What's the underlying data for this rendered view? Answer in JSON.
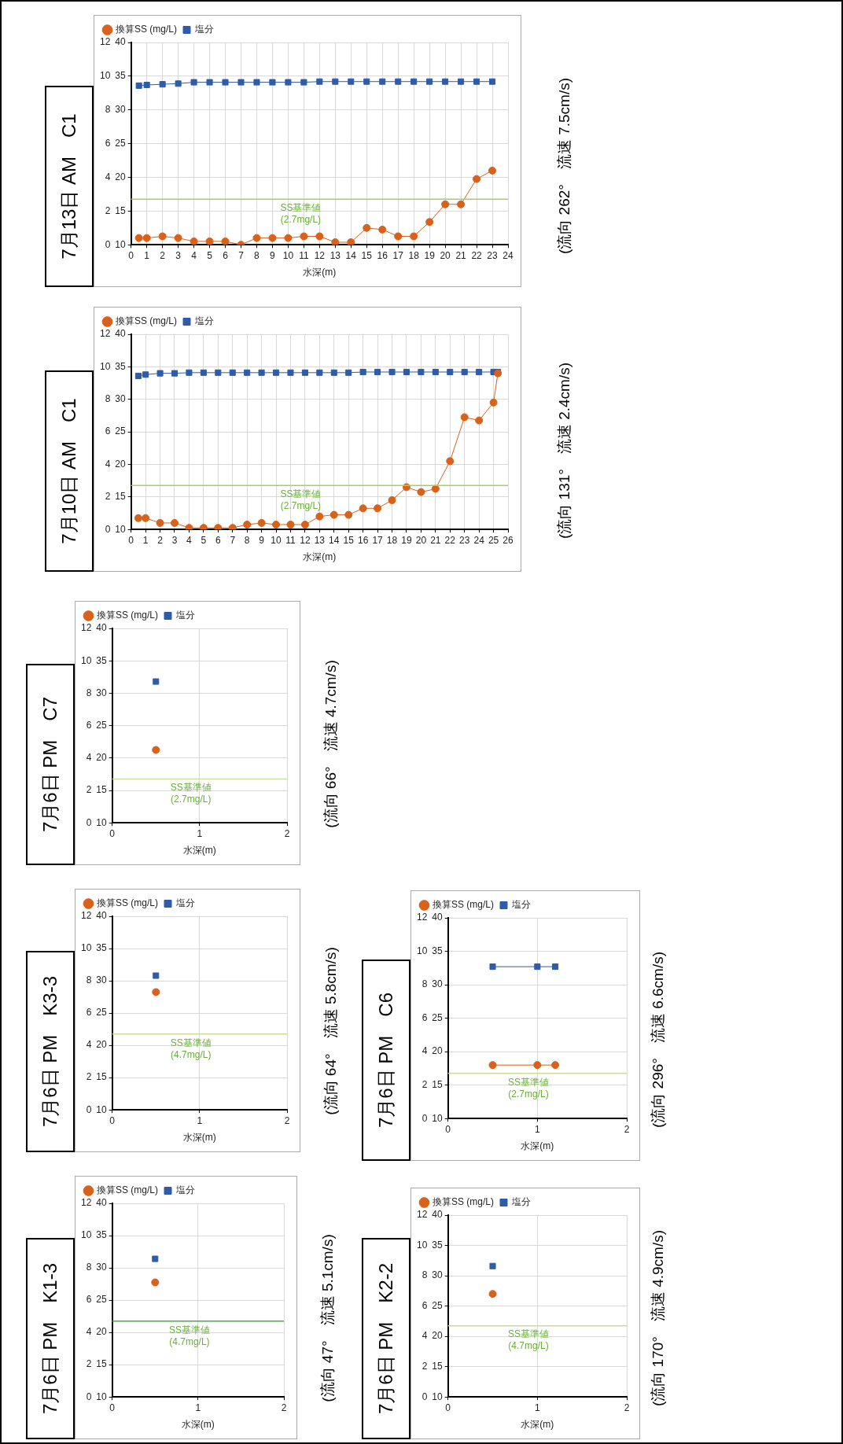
{
  "chart_data": [
    {
      "type": "line",
      "title": "7月13日 AM　C1",
      "xlabel": "水深(m)",
      "xlim": [
        0,
        24
      ],
      "xticks": [
        0,
        1,
        2,
        3,
        4,
        5,
        6,
        7,
        8,
        9,
        10,
        11,
        12,
        13,
        14,
        15,
        16,
        17,
        18,
        19,
        20,
        21,
        22,
        23,
        24
      ],
      "ylim": [
        0,
        12
      ],
      "yticks": [
        0,
        2,
        4,
        6,
        8,
        10,
        12
      ],
      "y2lim": [
        10,
        40
      ],
      "y2ticks": [
        10,
        15,
        20,
        25,
        30,
        35,
        40
      ],
      "grid": true,
      "legend": "top left",
      "series": [
        {
          "name": "換算SS (mg/L)",
          "color": "#d8611b",
          "marker": "circle",
          "x": [
            0.5,
            1,
            2,
            3,
            4,
            5,
            6,
            7,
            8,
            9,
            10,
            11,
            12,
            13,
            14,
            15,
            16,
            17,
            18,
            19,
            20,
            21,
            22,
            23
          ],
          "values": [
            0.4,
            0.4,
            0.5,
            0.4,
            0.2,
            0.2,
            0.2,
            0,
            0.4,
            0.4,
            0.4,
            0.5,
            0.5,
            0.15,
            0.15,
            1.0,
            0.9,
            0.5,
            0.5,
            1.35,
            2.4,
            2.4,
            3.9,
            4.4
          ]
        },
        {
          "name": "塩分",
          "color": "#2e5ca8",
          "marker": "square",
          "axis": "y2",
          "x": [
            0.5,
            1,
            2,
            3,
            4,
            5,
            6,
            7,
            8,
            9,
            10,
            11,
            12,
            13,
            14,
            15,
            16,
            17,
            18,
            19,
            20,
            21,
            22,
            23
          ],
          "values": [
            33.6,
            33.7,
            33.8,
            33.9,
            34.1,
            34.1,
            34.1,
            34.1,
            34.1,
            34.1,
            34.1,
            34.1,
            34.2,
            34.2,
            34.2,
            34.2,
            34.2,
            34.2,
            34.2,
            34.2,
            34.2,
            34.2,
            34.2,
            34.2
          ]
        }
      ],
      "ref_lines": [
        {
          "axis": "y",
          "value": 2.7,
          "label": "SS基準値\n(2.7mg/L)",
          "color": "#a9cf5a"
        }
      ],
      "annotations": [
        "(流向 262°　流速 7.5cm/s)"
      ]
    },
    {
      "type": "line",
      "title": "7月10日 AM　C1",
      "xlabel": "水深(m)",
      "xlim": [
        0,
        26
      ],
      "xticks": [
        0,
        1,
        2,
        3,
        4,
        5,
        6,
        7,
        8,
        9,
        10,
        11,
        12,
        13,
        14,
        15,
        16,
        17,
        18,
        19,
        20,
        21,
        22,
        23,
        24,
        25,
        26
      ],
      "ylim": [
        0,
        12
      ],
      "yticks": [
        0,
        2,
        4,
        6,
        8,
        10,
        12
      ],
      "y2lim": [
        10,
        40
      ],
      "y2ticks": [
        10,
        15,
        20,
        25,
        30,
        35,
        40
      ],
      "grid": true,
      "legend": "top left",
      "series": [
        {
          "name": "換算SS (mg/L)",
          "color": "#d8611b",
          "marker": "circle",
          "x": [
            0.5,
            1,
            2,
            3,
            4,
            5,
            6,
            7,
            8,
            9,
            10,
            11,
            12,
            13,
            14,
            15,
            16,
            17,
            18,
            19,
            20,
            21,
            22,
            23,
            24,
            25,
            25.3
          ],
          "values": [
            0.7,
            0.7,
            0.4,
            0.4,
            0.1,
            0.1,
            0.1,
            0.1,
            0.3,
            0.4,
            0.3,
            0.3,
            0.3,
            0.8,
            0.9,
            0.9,
            1.3,
            1.3,
            1.8,
            2.6,
            2.3,
            2.5,
            4.2,
            6.9,
            6.7,
            7.8,
            9.6
          ]
        },
        {
          "name": "塩分",
          "color": "#2e5ca8",
          "marker": "square",
          "axis": "y2",
          "x": [
            0.5,
            1,
            2,
            3,
            4,
            5,
            6,
            7,
            8,
            9,
            10,
            11,
            12,
            13,
            14,
            15,
            16,
            17,
            18,
            19,
            20,
            21,
            22,
            23,
            24,
            25,
            25.3
          ],
          "values": [
            33.6,
            33.8,
            34.0,
            34.0,
            34.1,
            34.1,
            34.1,
            34.1,
            34.1,
            34.1,
            34.1,
            34.1,
            34.1,
            34.1,
            34.1,
            34.1,
            34.2,
            34.2,
            34.2,
            34.2,
            34.2,
            34.2,
            34.2,
            34.2,
            34.2,
            34.2,
            34.2
          ]
        }
      ],
      "ref_lines": [
        {
          "axis": "y",
          "value": 2.7,
          "label": "SS基準値\n(2.7mg/L)",
          "color": "#a9cf5a"
        }
      ],
      "annotations": [
        "(流向 131°　流速 2.4cm/s)"
      ]
    },
    {
      "type": "scatter",
      "title": "7月6日 PM　C7",
      "xlabel": "水深(m)",
      "xlim": [
        0,
        2
      ],
      "xticks": [
        0,
        1,
        2
      ],
      "ylim": [
        0,
        12
      ],
      "yticks": [
        0,
        2,
        4,
        6,
        8,
        10,
        12
      ],
      "y2lim": [
        10,
        40
      ],
      "y2ticks": [
        10,
        15,
        20,
        25,
        30,
        35,
        40
      ],
      "grid": true,
      "legend": "top left",
      "series": [
        {
          "name": "換算SS (mg/L)",
          "color": "#d8611b",
          "marker": "circle",
          "x": [
            0.5
          ],
          "values": [
            4.5
          ]
        },
        {
          "name": "塩分",
          "color": "#2e5ca8",
          "marker": "square",
          "axis": "y2",
          "x": [
            0.5
          ],
          "values": [
            31.8
          ]
        }
      ],
      "ref_lines": [
        {
          "axis": "y",
          "value": 2.7,
          "label": "SS基準値\n(2.7mg/L)",
          "color": "#c9dd9a"
        }
      ],
      "annotations": [
        "(流向 66°　流速 4.7cm/s)"
      ]
    },
    {
      "type": "scatter",
      "title": "7月6日 PM　K3-3",
      "xlabel": "水深(m)",
      "xlim": [
        0,
        2
      ],
      "xticks": [
        0,
        1,
        2
      ],
      "ylim": [
        0,
        12
      ],
      "yticks": [
        0,
        2,
        4,
        6,
        8,
        10,
        12
      ],
      "y2lim": [
        10,
        40
      ],
      "y2ticks": [
        10,
        15,
        20,
        25,
        30,
        35,
        40
      ],
      "grid": true,
      "legend": "top left",
      "series": [
        {
          "name": "換算SS (mg/L)",
          "color": "#d8611b",
          "marker": "circle",
          "x": [
            0.5
          ],
          "values": [
            7.3
          ]
        },
        {
          "name": "塩分",
          "color": "#2e5ca8",
          "marker": "square",
          "axis": "y2",
          "x": [
            0.5
          ],
          "values": [
            30.8
          ]
        }
      ],
      "ref_lines": [
        {
          "axis": "y",
          "value": 4.7,
          "label": "SS基準値\n(4.7mg/L)",
          "color": "#c9dd9a"
        }
      ],
      "annotations": [
        "(流向 64°　流速 5.8cm/s)"
      ]
    },
    {
      "type": "scatter",
      "title": "7月6日 PM　K1-3",
      "xlabel": "水深(m)",
      "xlim": [
        0,
        2
      ],
      "xticks": [
        0,
        1,
        2
      ],
      "ylim": [
        0,
        12
      ],
      "yticks": [
        0,
        2,
        4,
        6,
        8,
        10,
        12
      ],
      "y2lim": [
        10,
        40
      ],
      "y2ticks": [
        10,
        15,
        20,
        25,
        30,
        35,
        40
      ],
      "grid": true,
      "legend": "top left",
      "series": [
        {
          "name": "換算SS (mg/L)",
          "color": "#d8611b",
          "marker": "circle",
          "x": [
            0.5
          ],
          "values": [
            7.1
          ]
        },
        {
          "name": "塩分",
          "color": "#2e5ca8",
          "marker": "square",
          "axis": "y2",
          "x": [
            0.5
          ],
          "values": [
            31.4
          ]
        }
      ],
      "ref_lines": [
        {
          "axis": "y",
          "value": 4.7,
          "label": "SS基準値\n(4.7mg/L)",
          "color": "#3fae3f"
        }
      ],
      "annotations": [
        "(流向 47°　流速 5.1cm/s)"
      ]
    },
    {
      "type": "line",
      "title": "7月6日 PM　C6",
      "xlabel": "水深(m)",
      "xlim": [
        0,
        2
      ],
      "xticks": [
        0,
        1,
        2
      ],
      "ylim": [
        0,
        12
      ],
      "yticks": [
        0,
        2,
        4,
        6,
        8,
        10,
        12
      ],
      "y2lim": [
        10,
        40
      ],
      "y2ticks": [
        10,
        15,
        20,
        25,
        30,
        35,
        40
      ],
      "grid": true,
      "legend": "top left",
      "series": [
        {
          "name": "換算SS (mg/L)",
          "color": "#d8611b",
          "marker": "circle",
          "x": [
            0.5,
            1,
            1.2
          ],
          "values": [
            3.2,
            3.2,
            3.2
          ]
        },
        {
          "name": "塩分",
          "color": "#2e5ca8",
          "marker": "square",
          "axis": "y2",
          "x": [
            0.5,
            1,
            1.2
          ],
          "values": [
            32.7,
            32.7,
            32.7
          ]
        }
      ],
      "ref_lines": [
        {
          "axis": "y",
          "value": 2.7,
          "label": "SS基準値\n(2.7mg/L)",
          "color": "#c9dd9a"
        }
      ],
      "annotations": [
        "(流向 296°　流速 6.6cm/s)"
      ]
    },
    {
      "type": "scatter",
      "title": "7月6日 PM　K2-2",
      "xlabel": "水深(m)",
      "xlim": [
        0,
        2
      ],
      "xticks": [
        0,
        1,
        2
      ],
      "ylim": [
        0,
        12
      ],
      "yticks": [
        0,
        2,
        4,
        6,
        8,
        10,
        12
      ],
      "y2lim": [
        10,
        40
      ],
      "y2ticks": [
        10,
        15,
        20,
        25,
        30,
        35,
        40
      ],
      "grid": true,
      "legend": "top left",
      "series": [
        {
          "name": "換算SS (mg/L)",
          "color": "#d8611b",
          "marker": "circle",
          "x": [
            0.5
          ],
          "values": [
            6.8
          ]
        },
        {
          "name": "塩分",
          "color": "#2e5ca8",
          "marker": "square",
          "axis": "y2",
          "x": [
            0.5
          ],
          "values": [
            31.6
          ]
        }
      ],
      "ref_lines": [
        {
          "axis": "y",
          "value": 4.7,
          "label": "SS基準値\n(4.7mg/L)",
          "color": "#c9dd9a"
        }
      ],
      "annotations": [
        "(流向 170°　流速 4.9cm/s)"
      ]
    }
  ]
}
